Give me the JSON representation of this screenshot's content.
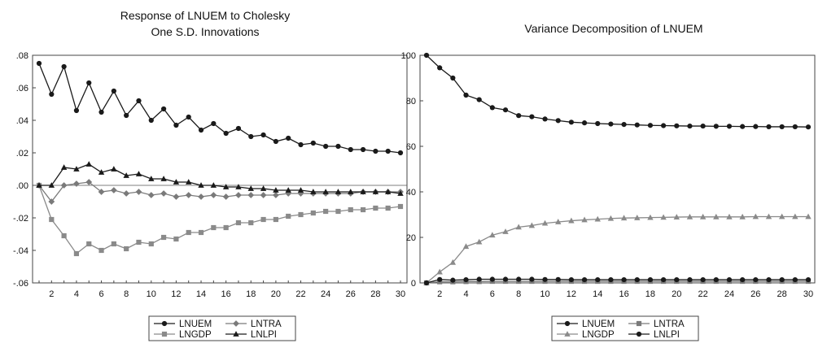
{
  "chart_data": [
    {
      "type": "line",
      "title": [
        "Response of LNUEM to Cholesky",
        "One S.D. Innovations"
      ],
      "xlim": [
        1,
        30
      ],
      "ylim": [
        -0.06,
        0.08
      ],
      "x_ticks": [
        "2",
        "4",
        "6",
        "8",
        "10",
        "12",
        "14",
        "16",
        "18",
        "20",
        "22",
        "24",
        "26",
        "28",
        "30"
      ],
      "y_ticks": [
        ".08",
        ".06",
        ".04",
        ".02",
        ".00",
        "-.02",
        "-.04",
        "-.06"
      ],
      "y_tick_values": [
        0.08,
        0.06,
        0.04,
        0.02,
        0.0,
        -0.02,
        -0.04,
        -0.06
      ],
      "zero_line": true,
      "legend": {
        "placement": "bottom",
        "entries": [
          "LNUEM",
          "LNTRA",
          "LNGDP",
          "LNLPI"
        ]
      },
      "series": [
        {
          "name": "LNUEM",
          "color": "#1a1a1a",
          "marker": "circle",
          "values": [
            0.075,
            0.056,
            0.073,
            0.046,
            0.063,
            0.045,
            0.058,
            0.043,
            0.052,
            0.04,
            0.047,
            0.037,
            0.042,
            0.034,
            0.038,
            0.032,
            0.035,
            0.03,
            0.031,
            0.027,
            0.029,
            0.025,
            0.026,
            0.024,
            0.024,
            0.022,
            0.022,
            0.021,
            0.021,
            0.02
          ]
        },
        {
          "name": "LNTRA",
          "color": "#7a7a7a",
          "marker": "diamond",
          "values": [
            0.0,
            -0.01,
            0.0,
            0.001,
            0.002,
            -0.004,
            -0.003,
            -0.005,
            -0.004,
            -0.006,
            -0.005,
            -0.007,
            -0.006,
            -0.007,
            -0.006,
            -0.007,
            -0.006,
            -0.006,
            -0.006,
            -0.006,
            -0.005,
            -0.005,
            -0.005,
            -0.005,
            -0.005,
            -0.005,
            -0.004,
            -0.004,
            -0.004,
            -0.004
          ]
        },
        {
          "name": "LNGDP",
          "color": "#8a8a8a",
          "marker": "square",
          "values": [
            0.0,
            -0.021,
            -0.031,
            -0.042,
            -0.036,
            -0.04,
            -0.036,
            -0.039,
            -0.035,
            -0.036,
            -0.032,
            -0.033,
            -0.029,
            -0.029,
            -0.026,
            -0.026,
            -0.023,
            -0.023,
            -0.021,
            -0.021,
            -0.019,
            -0.018,
            -0.017,
            -0.016,
            -0.016,
            -0.015,
            -0.015,
            -0.014,
            -0.014,
            -0.013
          ]
        },
        {
          "name": "LNLPI",
          "color": "#1a1a1a",
          "marker": "triangle",
          "values": [
            0.0,
            0.0,
            0.011,
            0.01,
            0.013,
            0.008,
            0.01,
            0.006,
            0.007,
            0.004,
            0.004,
            0.002,
            0.002,
            0.0,
            0.0,
            -0.001,
            -0.001,
            -0.002,
            -0.002,
            -0.003,
            -0.003,
            -0.003,
            -0.004,
            -0.004,
            -0.004,
            -0.004,
            -0.004,
            -0.004,
            -0.004,
            -0.005
          ]
        }
      ]
    },
    {
      "type": "line",
      "title": [
        "Variance Decomposition of LNUEM"
      ],
      "xlim": [
        1,
        30
      ],
      "ylim": [
        0,
        100
      ],
      "x_ticks": [
        "2",
        "4",
        "6",
        "8",
        "10",
        "12",
        "14",
        "16",
        "18",
        "20",
        "22",
        "24",
        "26",
        "28",
        "30"
      ],
      "y_ticks": [
        "100",
        "80",
        "60",
        "40",
        "20",
        "0"
      ],
      "y_tick_values": [
        100,
        80,
        60,
        40,
        20,
        0
      ],
      "zero_line": false,
      "legend": {
        "placement": "bottom",
        "entries": [
          "LNUEM",
          "LNTRA",
          "LNGDP",
          "LNLPI"
        ]
      },
      "series": [
        {
          "name": "LNUEM",
          "color": "#1a1a1a",
          "marker": "circle",
          "values": [
            100,
            94.5,
            90,
            82.5,
            80.5,
            77,
            76,
            73.5,
            73,
            72,
            71.3,
            70.6,
            70.3,
            70,
            69.8,
            69.6,
            69.4,
            69.2,
            69.1,
            69,
            68.9,
            68.9,
            68.8,
            68.8,
            68.7,
            68.7,
            68.6,
            68.6,
            68.6,
            68.5
          ]
        },
        {
          "name": "LNTRA",
          "color": "#7a7a7a",
          "marker": "square",
          "values": [
            0,
            0.5,
            0.5,
            0.6,
            0.6,
            0.7,
            0.7,
            0.7,
            0.7,
            0.7,
            0.7,
            0.7,
            0.7,
            0.7,
            0.7,
            0.7,
            0.7,
            0.7,
            0.7,
            0.7,
            0.7,
            0.7,
            0.7,
            0.7,
            0.7,
            0.7,
            0.7,
            0.7,
            0.7,
            0.7
          ]
        },
        {
          "name": "LNGDP",
          "color": "#8a8a8a",
          "marker": "triangle",
          "values": [
            0,
            4.8,
            9,
            16,
            18,
            21,
            22.5,
            24.5,
            25.2,
            26.2,
            26.8,
            27.3,
            27.7,
            28,
            28.3,
            28.5,
            28.6,
            28.7,
            28.8,
            28.9,
            29,
            29,
            29,
            29,
            29,
            29.1,
            29.1,
            29.1,
            29.1,
            29.1
          ]
        },
        {
          "name": "LNLPI",
          "color": "#1a1a1a",
          "marker": "circle",
          "values": [
            0,
            1.5,
            1.2,
            1.4,
            1.6,
            1.6,
            1.6,
            1.6,
            1.6,
            1.5,
            1.5,
            1.4,
            1.4,
            1.4,
            1.4,
            1.4,
            1.4,
            1.4,
            1.4,
            1.4,
            1.4,
            1.4,
            1.4,
            1.4,
            1.4,
            1.4,
            1.4,
            1.4,
            1.4,
            1.4
          ]
        }
      ]
    }
  ]
}
